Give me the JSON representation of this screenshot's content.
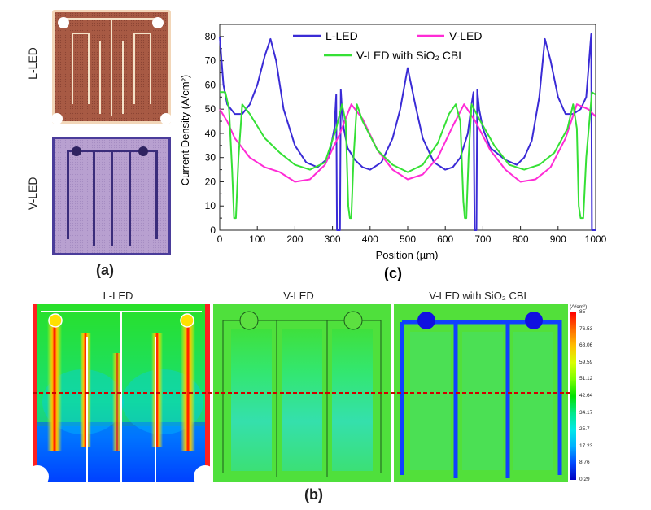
{
  "panel_a": {
    "letter": "(a)",
    "top_label": "L-LED",
    "bottom_label": "V-LED"
  },
  "panel_b": {
    "letter": "(b)",
    "titles": [
      "L-LED",
      "V-LED",
      "V-LED with SiO₂ CBL"
    ],
    "colorbar_unit": "(A/cm²)",
    "colorbar_ticks": [
      "85",
      "76.53",
      "68.06",
      "59.59",
      "51.12",
      "42.64",
      "34.17",
      "25.7",
      "17.23",
      "8.76",
      "0.29"
    ],
    "colorbar_colors": [
      "#ff0000",
      "#ff6a00",
      "#ffc000",
      "#d8ff00",
      "#7cff00",
      "#00e000",
      "#00e88a",
      "#00e8e8",
      "#00b0ff",
      "#0048ff",
      "#0000c0"
    ]
  },
  "chart_data": {
    "type": "line",
    "letter": "(c)",
    "xlabel": "Position (µm)",
    "ylabel": "Current Density (A/cm²)",
    "xlim": [
      0,
      1000
    ],
    "ylim": [
      0,
      85
    ],
    "xticks": [
      0,
      100,
      200,
      300,
      400,
      500,
      600,
      700,
      800,
      900,
      1000
    ],
    "yticks": [
      0,
      5,
      10,
      15,
      20,
      25,
      30,
      35,
      40,
      45,
      50,
      55,
      60,
      65,
      70,
      75,
      80
    ],
    "grid": false,
    "legend": "top",
    "series": [
      {
        "name": "L-LED",
        "color": "#3a2bd6",
        "x": [
          0,
          10,
          20,
          40,
          60,
          80,
          100,
          120,
          135,
          150,
          170,
          200,
          230,
          260,
          290,
          305,
          310,
          312,
          315,
          318,
          320,
          322,
          325,
          330,
          340,
          360,
          380,
          400,
          430,
          460,
          480,
          500,
          520,
          540,
          570,
          600,
          620,
          640,
          660,
          670,
          675,
          678,
          680,
          683,
          685,
          690,
          700,
          720,
          760,
          790,
          810,
          830,
          850,
          865,
          880,
          900,
          920,
          940,
          960,
          975,
          985,
          988,
          990,
          993,
          996,
          1000
        ],
        "y": [
          80,
          60,
          52,
          48,
          48,
          52,
          60,
          72,
          79,
          70,
          50,
          35,
          28,
          26,
          30,
          42,
          56,
          0,
          0,
          0,
          0,
          58,
          50,
          42,
          34,
          29,
          26,
          25,
          28,
          38,
          50,
          67,
          52,
          38,
          28,
          25,
          26,
          30,
          40,
          52,
          57,
          0,
          0,
          0,
          58,
          50,
          42,
          34,
          29,
          27,
          30,
          37,
          55,
          79,
          70,
          55,
          48,
          48,
          50,
          55,
          75,
          81,
          0,
          0,
          0,
          0
        ]
      },
      {
        "name": "V-LED",
        "color": "#ff2bd6",
        "x": [
          0,
          20,
          40,
          80,
          120,
          160,
          200,
          240,
          280,
          320,
          350,
          380,
          420,
          460,
          500,
          540,
          580,
          620,
          650,
          680,
          720,
          760,
          800,
          840,
          880,
          920,
          950,
          980,
          1000
        ],
        "y": [
          50,
          45,
          38,
          30,
          26,
          24,
          20,
          21,
          27,
          40,
          52,
          46,
          33,
          25,
          21,
          23,
          30,
          43,
          52,
          45,
          33,
          25,
          20,
          21,
          26,
          38,
          52,
          50,
          47
        ]
      },
      {
        "name": "V-LED with SiO₂ CBL",
        "color": "#35e035",
        "x": [
          0,
          15,
          25,
          33,
          38,
          43,
          50,
          60,
          80,
          120,
          160,
          200,
          240,
          280,
          310,
          325,
          335,
          342,
          346,
          350,
          356,
          365,
          380,
          420,
          460,
          500,
          540,
          580,
          610,
          628,
          640,
          648,
          652,
          656,
          662,
          670,
          690,
          730,
          770,
          810,
          850,
          890,
          925,
          940,
          950,
          955,
          960,
          967,
          975,
          990,
          1000
        ],
        "y": [
          57,
          57,
          50,
          25,
          5,
          5,
          30,
          52,
          48,
          38,
          32,
          27,
          25,
          28,
          42,
          52,
          45,
          10,
          5,
          5,
          30,
          52,
          45,
          33,
          27,
          24,
          27,
          36,
          48,
          52,
          45,
          12,
          5,
          5,
          30,
          52,
          46,
          35,
          27,
          25,
          27,
          32,
          42,
          52,
          42,
          10,
          5,
          5,
          30,
          57,
          56
        ]
      }
    ]
  }
}
